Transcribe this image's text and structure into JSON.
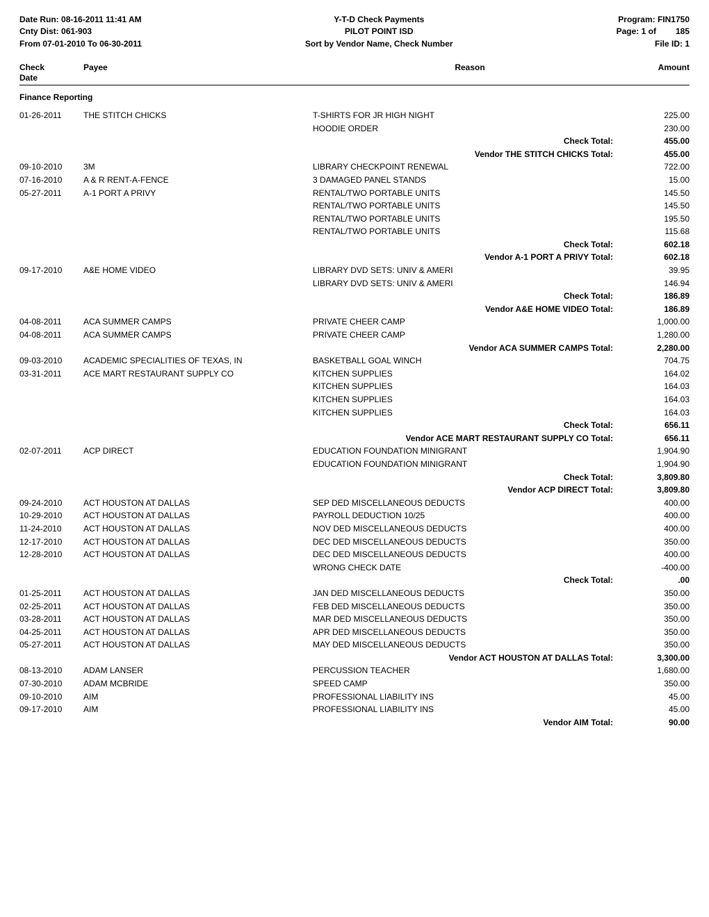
{
  "header": {
    "left": {
      "dateRunLabel": "Date Run:",
      "dateRun": "08-16-2011 11:41 AM",
      "cntyDistLabel": "Cnty Dist:",
      "cntyDist": "061-903",
      "fromLabel": "From 07-01-2010 To 06-30-2011"
    },
    "center": {
      "title1": "Y-T-D Check Payments",
      "title2": "PILOT POINT ISD",
      "title3": "Sort by Vendor Name, Check Number"
    },
    "right": {
      "programLabel": "Program:",
      "program": "FIN1750",
      "pageLabel": "Page: 1 of",
      "pageTotal": "185",
      "fileIdLabel": "File ID: 1"
    }
  },
  "columns": {
    "checkDate": "Check\nDate",
    "payee": "Payee",
    "reason": "Reason",
    "amount": "Amount"
  },
  "sectionTitle": "Finance Reporting",
  "rows": [
    {
      "date": "01-26-2011",
      "payee": "THE STITCH CHICKS",
      "reason": "T-SHIRTS FOR JR HIGH NIGHT",
      "amount": "225.00"
    },
    {
      "date": "",
      "payee": "",
      "reason": "HOODIE ORDER",
      "amount": "230.00"
    },
    {
      "type": "total",
      "label": "Check Total:",
      "amount": "455.00"
    },
    {
      "type": "total",
      "label": "Vendor  THE STITCH CHICKS Total:",
      "amount": "455.00"
    },
    {
      "date": "09-10-2010",
      "payee": "3M",
      "reason": "LIBRARY CHECKPOINT RENEWAL",
      "amount": "722.00"
    },
    {
      "date": "07-16-2010",
      "payee": "A & R RENT-A-FENCE",
      "reason": "3 DAMAGED PANEL STANDS",
      "amount": "15.00"
    },
    {
      "date": "05-27-2011",
      "payee": "A-1 PORT A PRIVY",
      "reason": "RENTAL/TWO PORTABLE UNITS",
      "amount": "145.50"
    },
    {
      "date": "",
      "payee": "",
      "reason": "RENTAL/TWO PORTABLE UNITS",
      "amount": "145.50"
    },
    {
      "date": "",
      "payee": "",
      "reason": "RENTAL/TWO PORTABLE UNITS",
      "amount": "195.50"
    },
    {
      "date": "",
      "payee": "",
      "reason": "RENTAL/TWO PORTABLE UNITS",
      "amount": "115.68"
    },
    {
      "type": "total",
      "label": "Check Total:",
      "amount": "602.18"
    },
    {
      "type": "total",
      "label": "Vendor A-1 PORT A PRIVY Total:",
      "amount": "602.18"
    },
    {
      "date": "09-17-2010",
      "payee": "A&E HOME VIDEO",
      "reason": "LIBRARY DVD SETS: UNIV & AMERI",
      "amount": "39.95"
    },
    {
      "date": "",
      "payee": "",
      "reason": "LIBRARY DVD SETS: UNIV & AMERI",
      "amount": "146.94"
    },
    {
      "type": "total",
      "label": "Check Total:",
      "amount": "186.89"
    },
    {
      "type": "total",
      "label": "Vendor A&E HOME VIDEO Total:",
      "amount": "186.89"
    },
    {
      "date": "04-08-2011",
      "payee": "ACA SUMMER CAMPS",
      "reason": "PRIVATE CHEER CAMP",
      "amount": "1,000.00"
    },
    {
      "date": "04-08-2011",
      "payee": "ACA SUMMER CAMPS",
      "reason": "PRIVATE CHEER CAMP",
      "amount": "1,280.00"
    },
    {
      "type": "total",
      "label": "Vendor ACA SUMMER CAMPS Total:",
      "amount": "2,280.00"
    },
    {
      "date": "09-03-2010",
      "payee": "ACADEMIC SPECIALITIES OF TEXAS, IN",
      "reason": "BASKETBALL GOAL WINCH",
      "amount": "704.75"
    },
    {
      "date": "03-31-2011",
      "payee": "ACE MART RESTAURANT SUPPLY CO",
      "reason": "KITCHEN SUPPLIES",
      "amount": "164.02"
    },
    {
      "date": "",
      "payee": "",
      "reason": "KITCHEN SUPPLIES",
      "amount": "164.03"
    },
    {
      "date": "",
      "payee": "",
      "reason": "KITCHEN SUPPLIES",
      "amount": "164.03"
    },
    {
      "date": "",
      "payee": "",
      "reason": "KITCHEN SUPPLIES",
      "amount": "164.03"
    },
    {
      "type": "total",
      "label": "Check Total:",
      "amount": "656.11"
    },
    {
      "type": "total",
      "label": "Vendor ACE MART RESTAURANT SUPPLY CO Total:",
      "amount": "656.11"
    },
    {
      "date": "02-07-2011",
      "payee": "ACP DIRECT",
      "reason": "EDUCATION FOUNDATION MINIGRANT",
      "amount": "1,904.90"
    },
    {
      "date": "",
      "payee": "",
      "reason": "EDUCATION FOUNDATION MINIGRANT",
      "amount": "1,904.90"
    },
    {
      "type": "total",
      "label": "Check Total:",
      "amount": "3,809.80"
    },
    {
      "type": "total",
      "label": "Vendor ACP DIRECT Total:",
      "amount": "3,809.80"
    },
    {
      "date": "09-24-2010",
      "payee": "ACT HOUSTON AT DALLAS",
      "reason": "SEP DED MISCELLANEOUS DEDUCTS",
      "amount": "400.00"
    },
    {
      "date": "10-29-2010",
      "payee": "ACT HOUSTON AT DALLAS",
      "reason": "PAYROLL DEDUCTION 10/25",
      "amount": "400.00"
    },
    {
      "date": "11-24-2010",
      "payee": "ACT HOUSTON AT DALLAS",
      "reason": "NOV DED MISCELLANEOUS DEDUCTS",
      "amount": "400.00"
    },
    {
      "date": "12-17-2010",
      "payee": "ACT HOUSTON AT DALLAS",
      "reason": "DEC DED MISCELLANEOUS DEDUCTS",
      "amount": "350.00"
    },
    {
      "date": "12-28-2010",
      "payee": "ACT HOUSTON AT DALLAS",
      "reason": "DEC DED MISCELLANEOUS DEDUCTS",
      "amount": "400.00"
    },
    {
      "date": "",
      "payee": "",
      "reason": "WRONG CHECK DATE",
      "amount": "-400.00"
    },
    {
      "type": "total",
      "label": "Check Total:",
      "amount": ".00"
    },
    {
      "date": "01-25-2011",
      "payee": "ACT HOUSTON AT DALLAS",
      "reason": "JAN DED MISCELLANEOUS DEDUCTS",
      "amount": "350.00"
    },
    {
      "date": "02-25-2011",
      "payee": "ACT HOUSTON AT DALLAS",
      "reason": "FEB DED MISCELLANEOUS DEDUCTS",
      "amount": "350.00"
    },
    {
      "date": "03-28-2011",
      "payee": "ACT HOUSTON AT DALLAS",
      "reason": "MAR DED MISCELLANEOUS DEDUCTS",
      "amount": "350.00"
    },
    {
      "date": "04-25-2011",
      "payee": "ACT HOUSTON AT DALLAS",
      "reason": "APR DED MISCELLANEOUS DEDUCTS",
      "amount": "350.00"
    },
    {
      "date": "05-27-2011",
      "payee": "ACT HOUSTON AT DALLAS",
      "reason": "MAY DED MISCELLANEOUS DEDUCTS",
      "amount": "350.00"
    },
    {
      "type": "total",
      "label": "Vendor ACT HOUSTON AT DALLAS Total:",
      "amount": "3,300.00"
    },
    {
      "date": "08-13-2010",
      "payee": "ADAM LANSER",
      "reason": "PERCUSSION TEACHER",
      "amount": "1,680.00"
    },
    {
      "date": "07-30-2010",
      "payee": "ADAM MCBRIDE",
      "reason": "SPEED CAMP",
      "amount": "350.00"
    },
    {
      "date": "09-10-2010",
      "payee": "AIM",
      "reason": "PROFESSIONAL LIABILITY INS",
      "amount": "45.00"
    },
    {
      "date": "09-17-2010",
      "payee": "AIM",
      "reason": "PROFESSIONAL LIABILITY INS",
      "amount": "45.00"
    },
    {
      "type": "total",
      "label": "Vendor AIM Total:",
      "amount": "90.00"
    }
  ]
}
